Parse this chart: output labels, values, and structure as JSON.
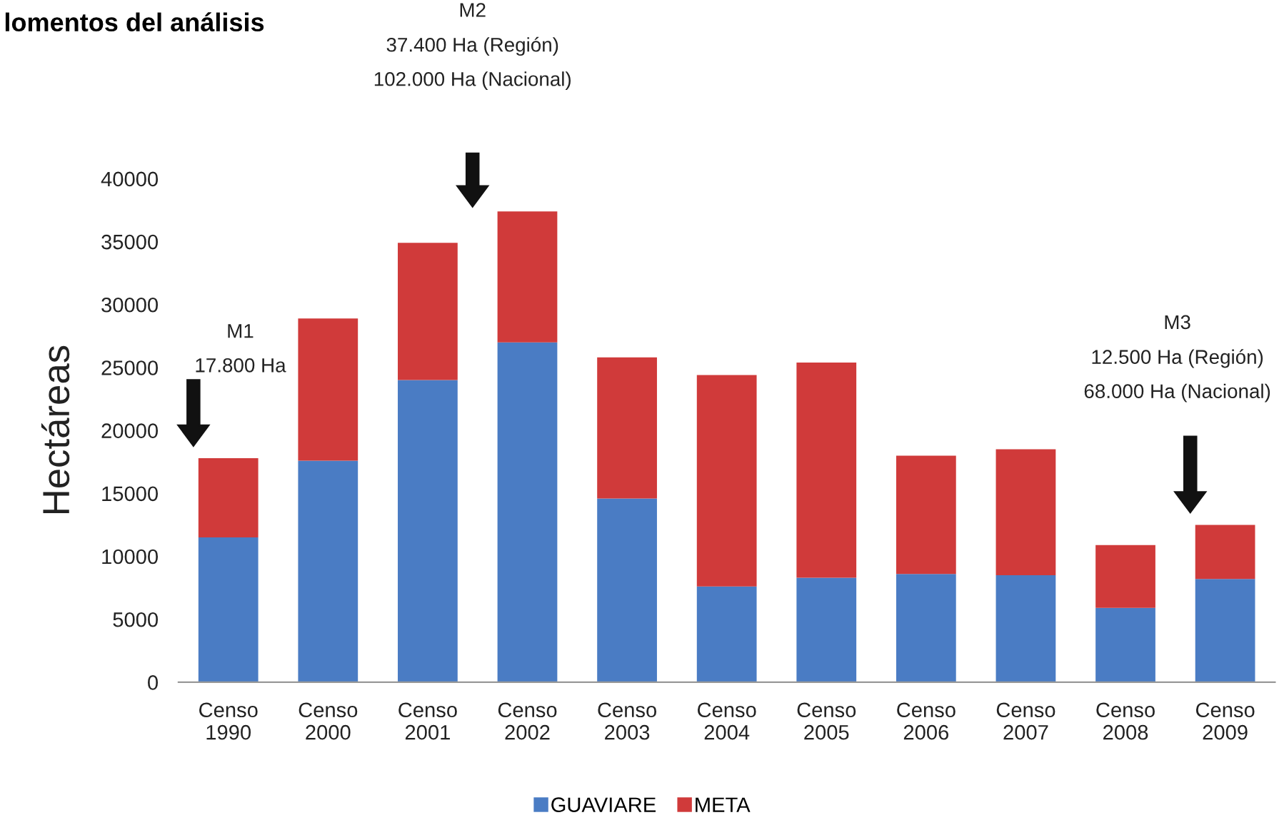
{
  "chart_data": {
    "type": "bar",
    "title": "lomentos del análisis",
    "ylabel": "Hectáreas",
    "categories": [
      "Censo\n1990",
      "Censo\n2000",
      "Censo\n2001",
      "Censo\n2002",
      "Censo\n2003",
      "Censo\n2004",
      "Censo\n2005",
      "Censo\n2006",
      "Censo\n2007",
      "Censo\n2008",
      "Censo\n2009"
    ],
    "series": [
      {
        "name": "GUAVIARE",
        "color": "#4a7cc4",
        "values": [
          11500,
          17600,
          24000,
          27000,
          14600,
          7600,
          8300,
          8600,
          8500,
          5900,
          8200
        ]
      },
      {
        "name": "META",
        "color": "#d03a3a",
        "values": [
          6300,
          11300,
          10900,
          10400,
          11200,
          16800,
          17100,
          9400,
          10000,
          5000,
          4300
        ]
      }
    ],
    "stacked": true,
    "ylim": [
      0,
      40000
    ],
    "yticks": [
      0,
      5000,
      10000,
      15000,
      20000,
      25000,
      30000,
      35000,
      40000
    ],
    "grid": false,
    "legend": "bottom",
    "annotations": [
      "M1\n17.800 Ha",
      "M2\n37.400 Ha (Región)\n102.000 Ha (Nacional)",
      "M3\n12.500 Ha (Región)\n68.000 Ha (Nacional)"
    ]
  }
}
